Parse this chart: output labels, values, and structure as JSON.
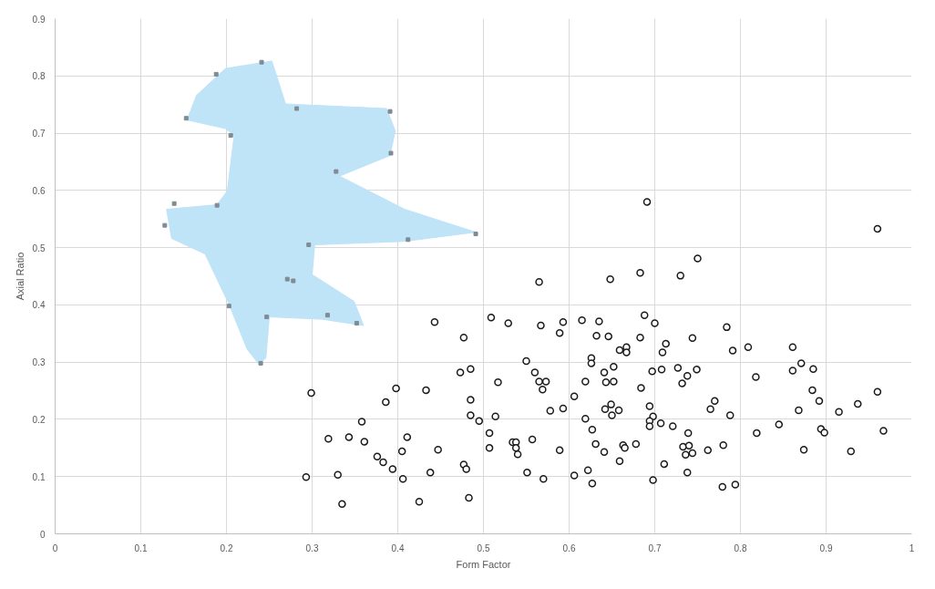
{
  "chart_data": {
    "type": "scatter",
    "xlabel": "Form Factor",
    "ylabel": "Axial Ratio",
    "xlim": [
      0,
      1
    ],
    "ylim": [
      0,
      0.9
    ],
    "xticks": [
      0,
      0.1,
      0.2,
      0.3,
      0.4,
      0.5,
      0.6,
      0.7,
      0.8,
      0.9,
      1
    ],
    "yticks": [
      0,
      0.1,
      0.2,
      0.3,
      0.4,
      0.5,
      0.6,
      0.7,
      0.8,
      0.9
    ],
    "grid": true,
    "series": [
      {
        "type": "area",
        "color": "#bfe3f7",
        "x": [
          0.199,
          0.253,
          0.269,
          0.387,
          0.397,
          0.391,
          0.332,
          0.408,
          0.491,
          0.408,
          0.303,
          0.3,
          0.349,
          0.36,
          0.311,
          0.25,
          0.246,
          0.238,
          0.224,
          0.203,
          0.175,
          0.136,
          0.13,
          0.189,
          0.201,
          0.209,
          0.199,
          0.154,
          0.165
        ],
        "values": [
          0.813,
          0.826,
          0.751,
          0.743,
          0.704,
          0.661,
          0.625,
          0.567,
          0.527,
          0.511,
          0.505,
          0.453,
          0.406,
          0.364,
          0.375,
          0.379,
          0.307,
          0.296,
          0.323,
          0.401,
          0.489,
          0.516,
          0.567,
          0.575,
          0.599,
          0.696,
          0.708,
          0.723,
          0.766
        ]
      },
      {
        "type": "scatter",
        "marker": "square",
        "color": "#7f8c94",
        "x": [
          0.241,
          0.188,
          0.153,
          0.205,
          0.282,
          0.391,
          0.392,
          0.328,
          0.139,
          0.189,
          0.128,
          0.296,
          0.412,
          0.491,
          0.271,
          0.278,
          0.203,
          0.247,
          0.318,
          0.352,
          0.24
        ],
        "values": [
          0.824,
          0.803,
          0.726,
          0.696,
          0.743,
          0.738,
          0.665,
          0.633,
          0.577,
          0.574,
          0.539,
          0.505,
          0.514,
          0.524,
          0.445,
          0.442,
          0.398,
          0.379,
          0.382,
          0.368,
          0.298
        ]
      },
      {
        "marker": "circle",
        "color": "#1a1a1a",
        "x": [
          0.443,
          0.477,
          0.473,
          0.485,
          0.299,
          0.398,
          0.433,
          0.386,
          0.485,
          0.485,
          0.358,
          0.319,
          0.343,
          0.361,
          0.411,
          0.405,
          0.447,
          0.376,
          0.383,
          0.477,
          0.48,
          0.394,
          0.406,
          0.438,
          0.293,
          0.33,
          0.483,
          0.425,
          0.335,
          0.691,
          0.565,
          0.648,
          0.683,
          0.73,
          0.509,
          0.529,
          0.567,
          0.593,
          0.589,
          0.615,
          0.635,
          0.632,
          0.646,
          0.688,
          0.7,
          0.683,
          0.713,
          0.709,
          0.659,
          0.667,
          0.667,
          0.55,
          0.626,
          0.626,
          0.56,
          0.517,
          0.565,
          0.573,
          0.569,
          0.641,
          0.652,
          0.643,
          0.652,
          0.697,
          0.708,
          0.727,
          0.732,
          0.619,
          0.684,
          0.606,
          0.578,
          0.593,
          0.649,
          0.642,
          0.658,
          0.65,
          0.694,
          0.698,
          0.694,
          0.694,
          0.707,
          0.721,
          0.495,
          0.514,
          0.619,
          0.627,
          0.507,
          0.534,
          0.538,
          0.538,
          0.54,
          0.557,
          0.507,
          0.589,
          0.631,
          0.641,
          0.663,
          0.665,
          0.678,
          0.659,
          0.711,
          0.551,
          0.57,
          0.606,
          0.622,
          0.627,
          0.698,
          0.96,
          0.75,
          0.784,
          0.744,
          0.791,
          0.809,
          0.861,
          0.861,
          0.871,
          0.885,
          0.738,
          0.749,
          0.818,
          0.884,
          0.892,
          0.77,
          0.765,
          0.788,
          0.868,
          0.915,
          0.937,
          0.96,
          0.845,
          0.819,
          0.894,
          0.898,
          0.967,
          0.739,
          0.733,
          0.74,
          0.736,
          0.744,
          0.762,
          0.78,
          0.874,
          0.929,
          0.738,
          0.779,
          0.794
        ],
        "values": [
          0.37,
          0.343,
          0.282,
          0.288,
          0.246,
          0.254,
          0.251,
          0.23,
          0.234,
          0.207,
          0.196,
          0.166,
          0.169,
          0.161,
          0.169,
          0.144,
          0.147,
          0.135,
          0.125,
          0.121,
          0.113,
          0.113,
          0.096,
          0.107,
          0.099,
          0.103,
          0.063,
          0.056,
          0.052,
          0.58,
          0.44,
          0.445,
          0.456,
          0.451,
          0.378,
          0.368,
          0.364,
          0.37,
          0.351,
          0.373,
          0.371,
          0.346,
          0.345,
          0.382,
          0.368,
          0.343,
          0.332,
          0.317,
          0.321,
          0.326,
          0.317,
          0.302,
          0.307,
          0.298,
          0.282,
          0.265,
          0.266,
          0.266,
          0.252,
          0.282,
          0.292,
          0.265,
          0.266,
          0.284,
          0.287,
          0.29,
          0.263,
          0.266,
          0.255,
          0.24,
          0.215,
          0.219,
          0.226,
          0.218,
          0.216,
          0.207,
          0.223,
          0.205,
          0.197,
          0.188,
          0.193,
          0.188,
          0.197,
          0.205,
          0.201,
          0.182,
          0.176,
          0.16,
          0.16,
          0.15,
          0.139,
          0.165,
          0.15,
          0.146,
          0.157,
          0.143,
          0.155,
          0.15,
          0.157,
          0.127,
          0.122,
          0.107,
          0.096,
          0.102,
          0.111,
          0.088,
          0.094,
          0.533,
          0.481,
          0.361,
          0.342,
          0.32,
          0.326,
          0.326,
          0.285,
          0.298,
          0.288,
          0.276,
          0.287,
          0.274,
          0.251,
          0.232,
          0.232,
          0.218,
          0.207,
          0.216,
          0.213,
          0.227,
          0.248,
          0.191,
          0.176,
          0.183,
          0.177,
          0.18,
          0.176,
          0.152,
          0.154,
          0.138,
          0.141,
          0.146,
          0.155,
          0.147,
          0.144,
          0.107,
          0.082,
          0.086
        ]
      }
    ]
  }
}
